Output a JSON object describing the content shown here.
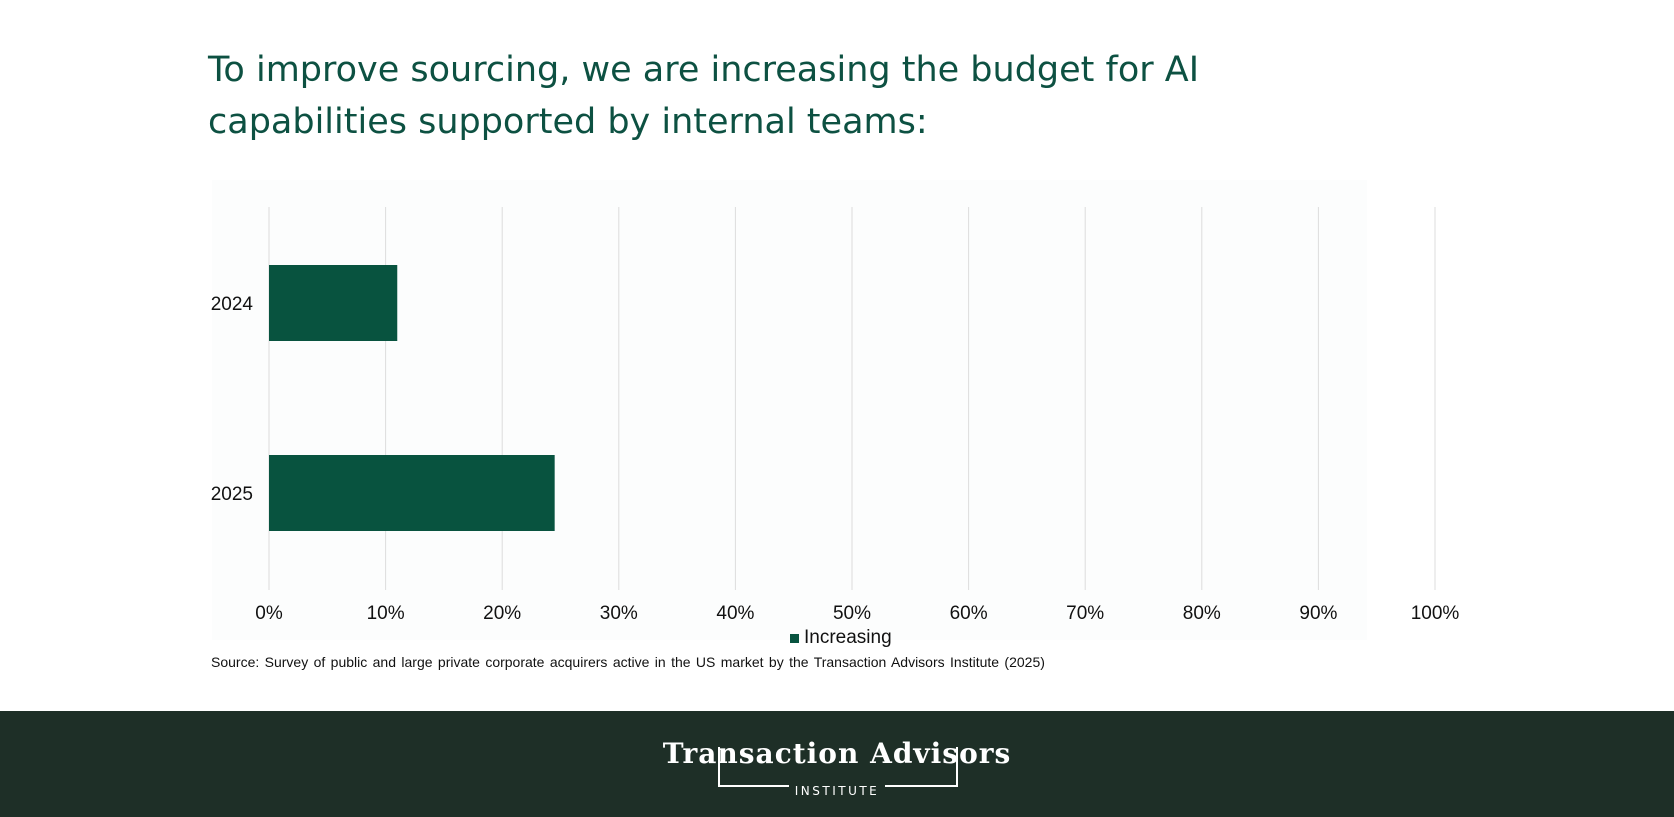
{
  "headline": "To improve sourcing, we are increasing the budget for AI capabilities supported by internal teams:",
  "chart_data": {
    "type": "bar",
    "orientation": "horizontal",
    "categories": [
      "2024",
      "2025"
    ],
    "series": [
      {
        "name": "Increasing",
        "values": [
          11,
          24.5
        ],
        "color": "#08533f"
      }
    ],
    "xlim": [
      0,
      100
    ],
    "xticks": [
      "0%",
      "10%",
      "20%",
      "30%",
      "40%",
      "50%",
      "60%",
      "70%",
      "80%",
      "90%",
      "100%"
    ],
    "grid": true,
    "legend_position": "bottom-center"
  },
  "source": "Source: Survey of public and large private corporate acquirers active in the US market by the Transaction Advisors Institute (2025)",
  "footer": {
    "logo_text": "Transaction Advisors",
    "logo_subtext": "INSTITUTE",
    "background": "#1e2f27"
  }
}
